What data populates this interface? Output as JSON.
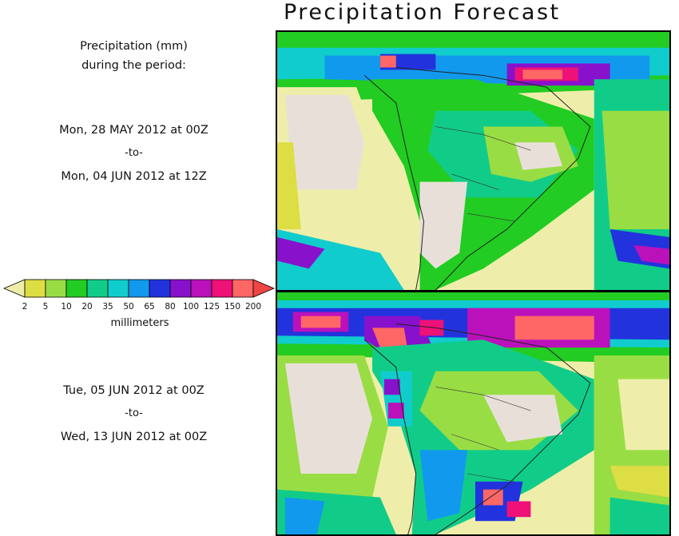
{
  "title": "Precipitation Forecast",
  "description_lines": [
    "Precipitation (mm)",
    "during the period:"
  ],
  "periods": [
    {
      "start": "Mon, 28 MAY 2012 at 00Z",
      "to": "-to-",
      "end": "Mon, 04 JUN 2012 at 12Z"
    },
    {
      "start": "Tue, 05 JUN 2012 at 00Z",
      "to": "-to-",
      "end": "Wed, 13 JUN 2012 at 00Z"
    }
  ],
  "colorbar": {
    "units": "millimeters",
    "labels": [
      "2",
      "5",
      "10",
      "20",
      "35",
      "50",
      "65",
      "80",
      "100",
      "125",
      "150",
      "200"
    ],
    "colors": [
      "#eeeeaa",
      "#dddd44",
      "#99dd44",
      "#22cc22",
      "#11cc88",
      "#11cccc",
      "#1199ee",
      "#2233dd",
      "#8811cc",
      "#bb11bb",
      "#ee1177",
      "#ff6666",
      "#ee4444"
    ]
  }
}
